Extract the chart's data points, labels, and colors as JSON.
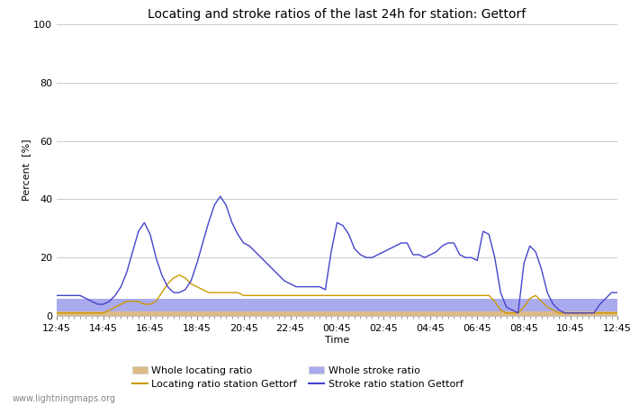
{
  "title": "Locating and stroke ratios of the last 24h for station: Gettorf",
  "xlabel": "Time",
  "ylabel": "Percent  [%]",
  "watermark": "www.lightningmaps.org",
  "ylim": [
    0,
    100
  ],
  "yticks": [
    0,
    20,
    40,
    60,
    80,
    100
  ],
  "x_labels": [
    "12:45",
    "14:45",
    "16:45",
    "18:45",
    "20:45",
    "22:45",
    "00:45",
    "02:45",
    "04:45",
    "06:45",
    "08:45",
    "10:45",
    "12:45"
  ],
  "time_points": 97,
  "stroke_ratio_station": [
    7,
    7,
    7,
    7,
    7,
    6,
    5,
    4,
    4,
    5,
    7,
    10,
    15,
    22,
    29,
    32,
    28,
    20,
    14,
    10,
    8,
    8,
    9,
    12,
    18,
    25,
    32,
    38,
    41,
    38,
    32,
    28,
    25,
    24,
    22,
    20,
    18,
    16,
    14,
    12,
    11,
    10,
    10,
    10,
    10,
    10,
    9,
    22,
    32,
    31,
    28,
    23,
    21,
    20,
    20,
    21,
    22,
    23,
    24,
    25,
    25,
    21,
    21,
    20,
    21,
    22,
    24,
    25,
    25,
    21,
    20,
    20,
    19,
    29,
    28,
    20,
    8,
    3,
    2,
    1,
    18,
    24,
    22,
    16,
    8,
    4,
    2,
    1,
    1,
    1,
    1,
    1,
    1,
    4,
    6,
    8,
    8
  ],
  "locating_ratio_station": [
    1,
    1,
    1,
    1,
    1,
    1,
    1,
    1,
    1,
    2,
    3,
    4,
    5,
    5,
    5,
    4,
    4,
    5,
    8,
    11,
    13,
    14,
    13,
    11,
    10,
    9,
    8,
    8,
    8,
    8,
    8,
    8,
    7,
    7,
    7,
    7,
    7,
    7,
    7,
    7,
    7,
    7,
    7,
    7,
    7,
    7,
    7,
    7,
    7,
    7,
    7,
    7,
    7,
    7,
    7,
    7,
    7,
    7,
    7,
    7,
    7,
    7,
    7,
    7,
    7,
    7,
    7,
    7,
    7,
    7,
    7,
    7,
    7,
    7,
    7,
    5,
    2,
    1,
    1,
    1,
    3,
    6,
    7,
    5,
    3,
    2,
    1,
    1,
    1,
    1,
    1,
    1,
    1,
    1,
    1,
    1,
    1
  ],
  "whole_stroke_ratio": [
    6,
    6,
    6,
    6,
    6,
    6,
    6,
    6,
    6,
    6,
    6,
    6,
    6,
    6,
    6,
    6,
    6,
    6,
    6,
    6,
    6,
    6,
    6,
    6,
    6,
    6,
    6,
    6,
    6,
    6,
    6,
    6,
    6,
    6,
    6,
    6,
    6,
    6,
    6,
    6,
    6,
    6,
    6,
    6,
    6,
    6,
    6,
    6,
    6,
    6,
    6,
    6,
    6,
    6,
    6,
    6,
    6,
    6,
    6,
    6,
    6,
    6,
    6,
    6,
    6,
    6,
    6,
    6,
    6,
    6,
    6,
    6,
    6,
    6,
    6,
    6,
    6,
    6,
    6,
    6,
    6,
    6,
    6,
    6,
    6,
    6,
    6,
    6,
    6,
    6,
    6,
    6,
    6,
    6,
    6,
    6,
    6
  ],
  "whole_locating_ratio": [
    1.5,
    1.5,
    1.5,
    1.5,
    1.5,
    1.5,
    1.5,
    1.5,
    1.5,
    1.5,
    1.5,
    1.5,
    1.5,
    1.5,
    1.5,
    1.5,
    1.5,
    1.5,
    1.5,
    1.5,
    1.5,
    1.5,
    1.5,
    1.5,
    1.5,
    1.5,
    1.5,
    1.5,
    1.5,
    1.5,
    1.5,
    1.5,
    1.5,
    1.5,
    1.5,
    1.5,
    1.5,
    1.5,
    1.5,
    1.5,
    1.5,
    1.5,
    1.5,
    1.5,
    1.5,
    1.5,
    1.5,
    1.5,
    1.5,
    1.5,
    1.5,
    1.5,
    1.5,
    1.5,
    1.5,
    1.5,
    1.5,
    1.5,
    1.5,
    1.5,
    1.5,
    1.5,
    1.5,
    1.5,
    1.5,
    1.5,
    1.5,
    1.5,
    1.5,
    1.5,
    1.5,
    1.5,
    1.5,
    1.5,
    1.5,
    1.5,
    1.5,
    1.5,
    1.5,
    1.5,
    1.5,
    1.5,
    1.5,
    1.5,
    1.5,
    1.5,
    1.5,
    1.5,
    1.5,
    1.5,
    1.5,
    1.5,
    1.5,
    1.5,
    1.5,
    1.5,
    1.5
  ],
  "stroke_color": "#4444cc",
  "locating_color": "#cc9900",
  "whole_stroke_fill": "#aaaaee",
  "whole_locating_fill": "#ddbb88",
  "bg_color": "#ffffff",
  "grid_color": "#cccccc",
  "title_fontsize": 10,
  "axis_fontsize": 8,
  "tick_fontsize": 8
}
